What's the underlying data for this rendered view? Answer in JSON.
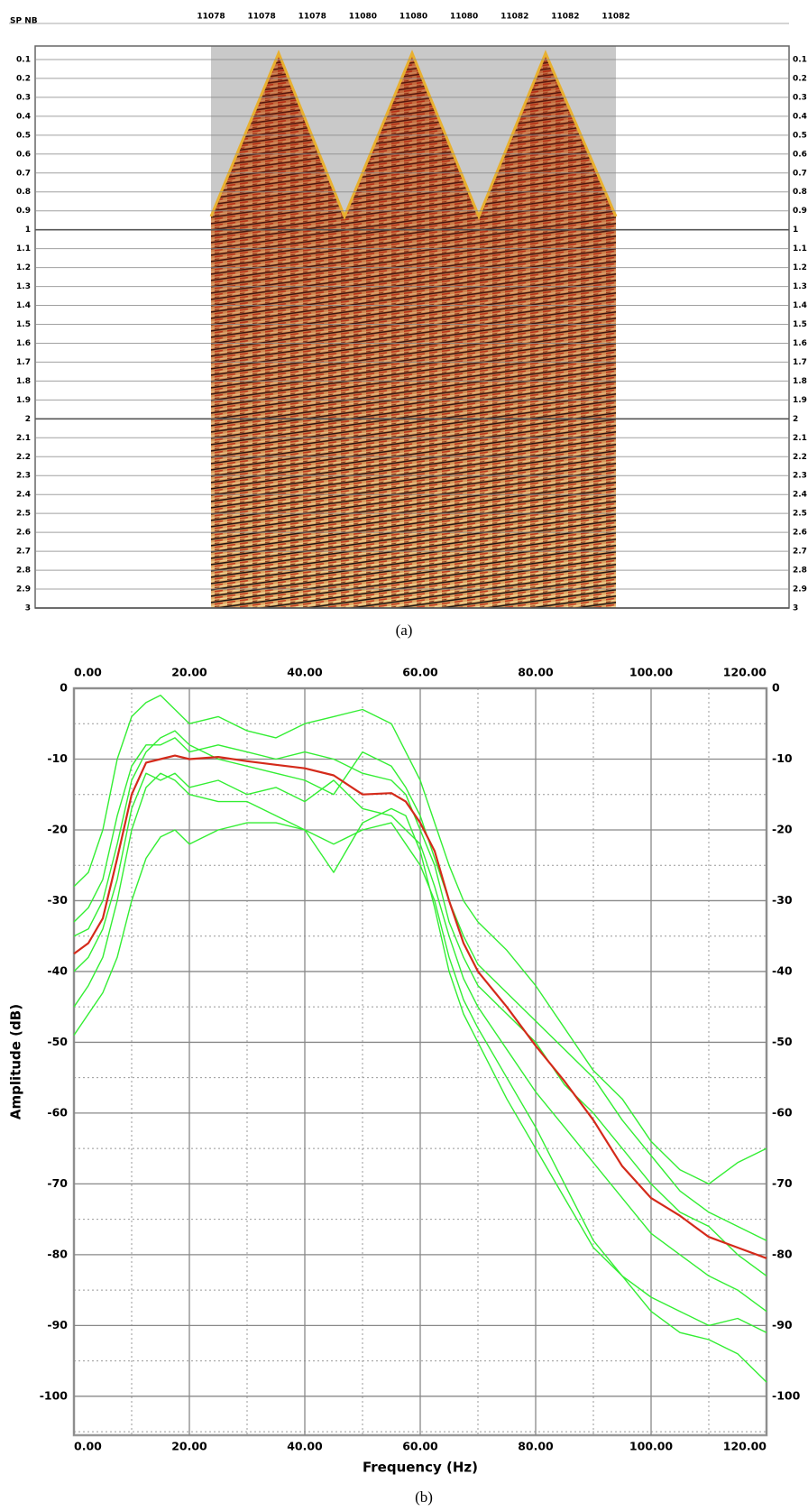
{
  "chart_data": [
    {
      "type": "seismic",
      "header": "SP NB",
      "categories": [
        "11078",
        "11078",
        "11078",
        "11080",
        "11080",
        "11080",
        "11082",
        "11082",
        "11082"
      ],
      "ylim": [
        0,
        3
      ],
      "yticks": [
        0.1,
        0.2,
        0.3,
        0.4,
        0.5,
        0.6,
        0.7,
        0.8,
        0.9,
        1,
        1.1,
        1.2,
        1.3,
        1.4,
        1.5,
        1.6,
        1.7,
        1.8,
        1.9,
        2,
        2.1,
        2.2,
        2.3,
        2.4,
        2.5,
        2.6,
        2.7,
        2.8,
        2.9,
        3
      ],
      "grid": true,
      "caption": "(a)"
    },
    {
      "type": "line",
      "xlabel": "Frequency (Hz)",
      "ylabel": "Amplitude (dB)",
      "caption": "(b)",
      "xlim": [
        0,
        120
      ],
      "ylim": [
        -105.5,
        0
      ],
      "xticks": [
        {
          "value": 0,
          "label": "0.00"
        },
        {
          "value": 20,
          "label": "20.00"
        },
        {
          "value": 40,
          "label": "40.00"
        },
        {
          "value": 60,
          "label": "60.00"
        },
        {
          "value": 80,
          "label": "80.00"
        },
        {
          "value": 100,
          "label": "100.00"
        },
        {
          "value": 120,
          "label": "120.00"
        }
      ],
      "yticks": [
        0,
        -10,
        -20,
        -30,
        -40,
        -50,
        -60,
        -70,
        -80,
        -90,
        -100
      ],
      "minor_xticks": [
        10,
        30,
        50,
        70,
        90,
        110
      ],
      "minor_yticks": [
        -5,
        -15,
        -25,
        -35,
        -45,
        -55,
        -65,
        -75,
        -85,
        -95,
        -105
      ],
      "grid": true,
      "x": [
        0,
        2.5,
        5,
        7.5,
        10,
        12.5,
        15,
        17.5,
        20,
        25,
        30,
        35,
        40,
        45,
        50,
        55,
        57.5,
        60,
        62.5,
        65,
        67.5,
        70,
        75,
        80,
        85,
        90,
        95,
        100,
        105,
        110,
        115,
        120
      ],
      "series": [
        {
          "color": "#33ee33",
          "values": [
            -28,
            -26,
            -20,
            -10,
            -4,
            -2,
            -1,
            -3,
            -5,
            -4,
            -6,
            -7,
            -5,
            -4,
            -3,
            -5,
            -9,
            -13,
            -19,
            -25,
            -30,
            -33,
            -37,
            -42,
            -48,
            -54,
            -58,
            -64,
            -68,
            -70,
            -67,
            -65
          ]
        },
        {
          "color": "#33ee33",
          "values": [
            -49,
            -46,
            -43,
            -38,
            -30,
            -24,
            -21,
            -20,
            -22,
            -20,
            -19,
            -19,
            -20,
            -22,
            -20,
            -19,
            -22,
            -25,
            -30,
            -38,
            -44,
            -48,
            -55,
            -62,
            -70,
            -78,
            -83,
            -88,
            -91,
            -92,
            -94,
            -98
          ]
        },
        {
          "color": "#33ee33",
          "values": [
            -33,
            -31,
            -27,
            -18,
            -11,
            -8,
            -8,
            -7,
            -9,
            -8,
            -9,
            -10,
            -9,
            -10,
            -12,
            -13,
            -15,
            -20,
            -25,
            -33,
            -38,
            -42,
            -46,
            -50,
            -56,
            -60,
            -65,
            -70,
            -74,
            -76,
            -80,
            -83
          ]
        },
        {
          "color": "#33ee33",
          "values": [
            -40,
            -38,
            -34,
            -27,
            -17,
            -12,
            -13,
            -12,
            -14,
            -13,
            -15,
            -14,
            -16,
            -13,
            -17,
            -18,
            -20,
            -22,
            -28,
            -35,
            -41,
            -45,
            -51,
            -57,
            -62,
            -67,
            -72,
            -77,
            -80,
            -83,
            -85,
            -88
          ]
        },
        {
          "color": "#33ee33",
          "values": [
            -35,
            -34,
            -30,
            -22,
            -13,
            -9,
            -7,
            -6,
            -8,
            -10,
            -11,
            -12,
            -13,
            -15,
            -9,
            -11,
            -14,
            -18,
            -24,
            -30,
            -35,
            -39,
            -43,
            -47,
            -51,
            -55,
            -61,
            -66,
            -71,
            -74,
            -76,
            -78
          ]
        },
        {
          "color": "#33ee33",
          "values": [
            -45,
            -42,
            -38,
            -30,
            -20,
            -14,
            -12,
            -13,
            -15,
            -16,
            -16,
            -18,
            -20,
            -26,
            -19,
            -17,
            -18,
            -23,
            -31,
            -40,
            -46,
            -50,
            -58,
            -65,
            -72,
            -79,
            -83,
            -86,
            -88,
            -90,
            -89,
            -91
          ]
        },
        {
          "color": "#d42a1a",
          "values": [
            -37.5,
            -36,
            -32.5,
            -24,
            -15,
            -10.5,
            -10,
            -9.5,
            -10,
            -9.7,
            -10.3,
            -10.8,
            -11.3,
            -12.3,
            -15,
            -14.8,
            -16,
            -19,
            -23,
            -30,
            -36,
            -40,
            -45,
            -50.5,
            -55.5,
            -61,
            -67.5,
            -72,
            -74.5,
            -77.5,
            -79,
            -80.5
          ]
        }
      ]
    }
  ]
}
